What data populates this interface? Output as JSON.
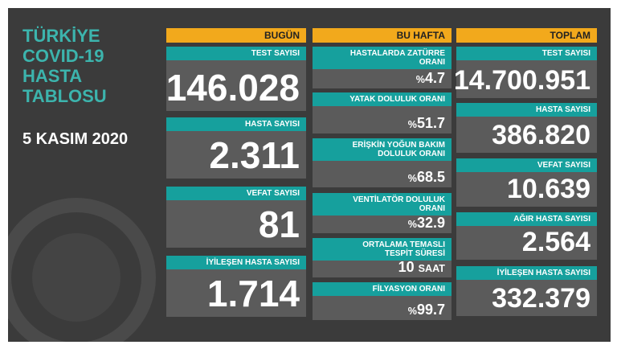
{
  "title": {
    "lines": [
      "TÜRKİYE",
      "COVID-19",
      "HASTA",
      "TABLOSU"
    ],
    "date": "5 KASIM 2020"
  },
  "columns": [
    {
      "header": "BUGÜN",
      "cards": [
        {
          "label": "TEST SAYISI",
          "value": "146.028"
        },
        {
          "label": "HASTA SAYISI",
          "value": "2.311"
        },
        {
          "label": "VEFAT SAYISI",
          "value": "81"
        },
        {
          "label": "İYİLEŞEN HASTA SAYISI",
          "value": "1.714"
        }
      ]
    },
    {
      "header": "BU HAFTA",
      "cards": [
        {
          "label": "HASTALARDA ZATÜRRE ORANI",
          "prefix": "%",
          "value": "4.7"
        },
        {
          "label": "YATAK DOLULUK ORANI",
          "prefix": "%",
          "value": "51.7"
        },
        {
          "label": "ERİŞKİN YOĞUN BAKIM DOLULUK ORANI",
          "prefix": "%",
          "value": "68.5"
        },
        {
          "label": "VENTİLATÖR DOLULUK ORANI",
          "prefix": "%",
          "value": "32.9"
        },
        {
          "label": "ORTALAMA TEMASLI TESPİT SÜRESİ",
          "value": "10",
          "unit": "SAAT"
        },
        {
          "label": "FİLYASYON ORANI",
          "prefix": "%",
          "value": "99.7"
        }
      ]
    },
    {
      "header": "TOPLAM",
      "cards": [
        {
          "label": "TEST SAYISI",
          "value": "14.700.951"
        },
        {
          "label": "HASTA SAYISI",
          "value": "386.820"
        },
        {
          "label": "VEFAT SAYISI",
          "value": "10.639"
        },
        {
          "label": "AĞIR HASTA SAYISI",
          "value": "2.564"
        },
        {
          "label": "İYİLEŞEN HASTA SAYISI",
          "value": "332.379"
        }
      ]
    }
  ]
}
